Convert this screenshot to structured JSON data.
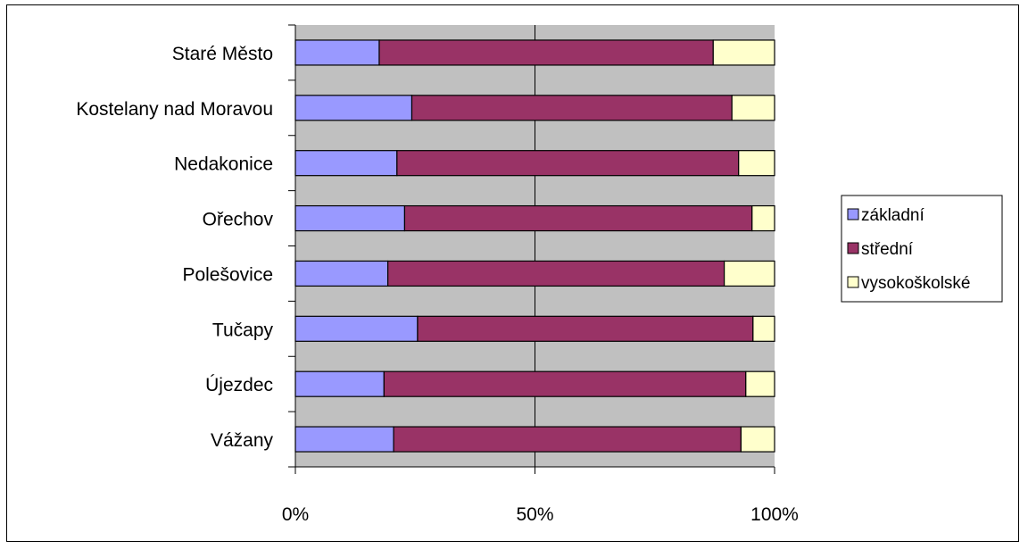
{
  "chart_data": {
    "type": "bar",
    "orientation": "horizontal",
    "stacked": "percent",
    "categories": [
      "Vážany",
      "Újezdec",
      "Tučapy",
      "Polešovice",
      "Ořechov",
      "Nedakonice",
      "Kostelany nad Moravou",
      "Staré Město"
    ],
    "series": [
      {
        "name": "základní",
        "color": "#9999ff",
        "values": [
          20.5,
          18.5,
          25.5,
          19.3,
          22.8,
          21.2,
          24.3,
          17.5
        ]
      },
      {
        "name": "střední",
        "color": "#993366",
        "values": [
          72.5,
          75.5,
          70.0,
          70.2,
          72.5,
          71.3,
          66.8,
          69.7
        ]
      },
      {
        "name": "vysokoškolské",
        "color": "#ffffcc",
        "values": [
          7.0,
          6.0,
          4.5,
          10.5,
          4.7,
          7.5,
          8.9,
          12.8
        ]
      }
    ],
    "xticks": [
      "0%",
      "50%",
      "100%"
    ],
    "xlim": [
      0,
      100
    ],
    "grid": true,
    "plot_background": "#c0c0c0",
    "legend_position": "right"
  }
}
